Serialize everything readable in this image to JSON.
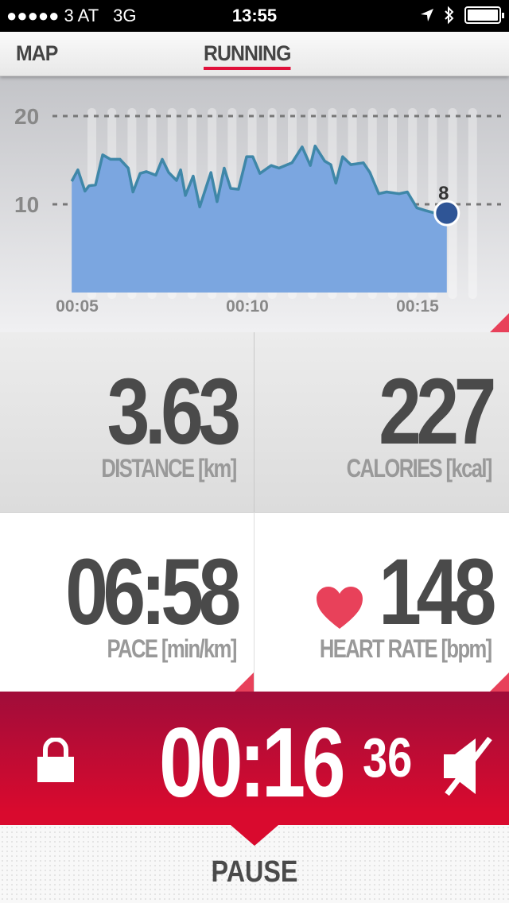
{
  "status_bar": {
    "carrier": "●●●●● 3 AT   3G",
    "time": "13:55",
    "icons": [
      "location-arrow-icon",
      "bluetooth-icon",
      "battery-icon"
    ],
    "battery_percent": 100
  },
  "tabs": [
    {
      "label": "MAP",
      "active": false
    },
    {
      "label": "RUNNING",
      "active": true
    }
  ],
  "chart_data": {
    "type": "area",
    "title": "",
    "xlabel": "",
    "ylabel": "",
    "y_ticks": [
      "10",
      "20"
    ],
    "x_ticks": [
      "00:05",
      "00:10",
      "00:15"
    ],
    "ylim": [
      0,
      20
    ],
    "xlim_minutes": [
      4.84,
      15.86
    ],
    "grid": "dashed horizontal at 10 and 20",
    "current_value_label": "8",
    "x": [
      4.84,
      5.02,
      5.23,
      5.35,
      5.54,
      5.75,
      5.98,
      6.26,
      6.5,
      6.64,
      6.85,
      7.03,
      7.31,
      7.5,
      7.69,
      7.92,
      8.04,
      8.18,
      8.41,
      8.6,
      8.93,
      9.11,
      9.32,
      9.51,
      9.74,
      9.98,
      10.16,
      10.37,
      10.7,
      10.93,
      11.31,
      11.61,
      11.85,
      11.99,
      12.27,
      12.45,
      12.6,
      12.8,
      13.04,
      13.41,
      13.6,
      13.86,
      14.09,
      14.46,
      14.7,
      14.98,
      15.23,
      15.51,
      15.86
    ],
    "values": [
      12.6,
      13.9,
      11.5,
      12.1,
      12.2,
      15.6,
      15.1,
      15.1,
      14.1,
      11.4,
      13.5,
      13.7,
      13.3,
      15.1,
      13.6,
      12.7,
      13.9,
      11.0,
      13.2,
      9.7,
      13.6,
      10.3,
      14.1,
      11.8,
      11.7,
      15.4,
      15.4,
      13.5,
      14.4,
      14.1,
      14.7,
      16.5,
      14.4,
      16.6,
      14.9,
      14.5,
      12.4,
      15.4,
      14.5,
      14.7,
      13.6,
      11.2,
      11.4,
      11.2,
      11.4,
      9.6,
      9.3,
      9.0,
      9.0
    ],
    "colors": {
      "fill": "#7ba6e0",
      "line": "#3f87a8",
      "marker": "#2f5596"
    }
  },
  "metrics": [
    {
      "value": "3.63",
      "label": "DISTANCE [km]"
    },
    {
      "value": "227",
      "label": "CALORIES [kcal]"
    },
    {
      "value": "06:58",
      "label": "PACE [min/km]"
    },
    {
      "value": "148",
      "label": "HEART RATE [bpm]",
      "icon": "heart-icon"
    }
  ],
  "timer": {
    "main": "00:16",
    "seconds": "36",
    "lock_icon": "lock-icon",
    "mute_icon": "speaker-muted-icon"
  },
  "pause_label": "PAUSE",
  "accent": "#d90a2e"
}
